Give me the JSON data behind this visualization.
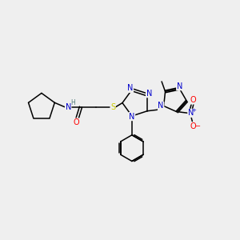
{
  "background_color": "#efefef",
  "figsize": [
    3.0,
    3.0
  ],
  "dpi": 100,
  "colors": {
    "C": "#000000",
    "N": "#0000cc",
    "O": "#ff0000",
    "S": "#cccc00",
    "H": "#507a7a",
    "bond": "#000000"
  },
  "lw": 1.1,
  "fs": 7.0
}
